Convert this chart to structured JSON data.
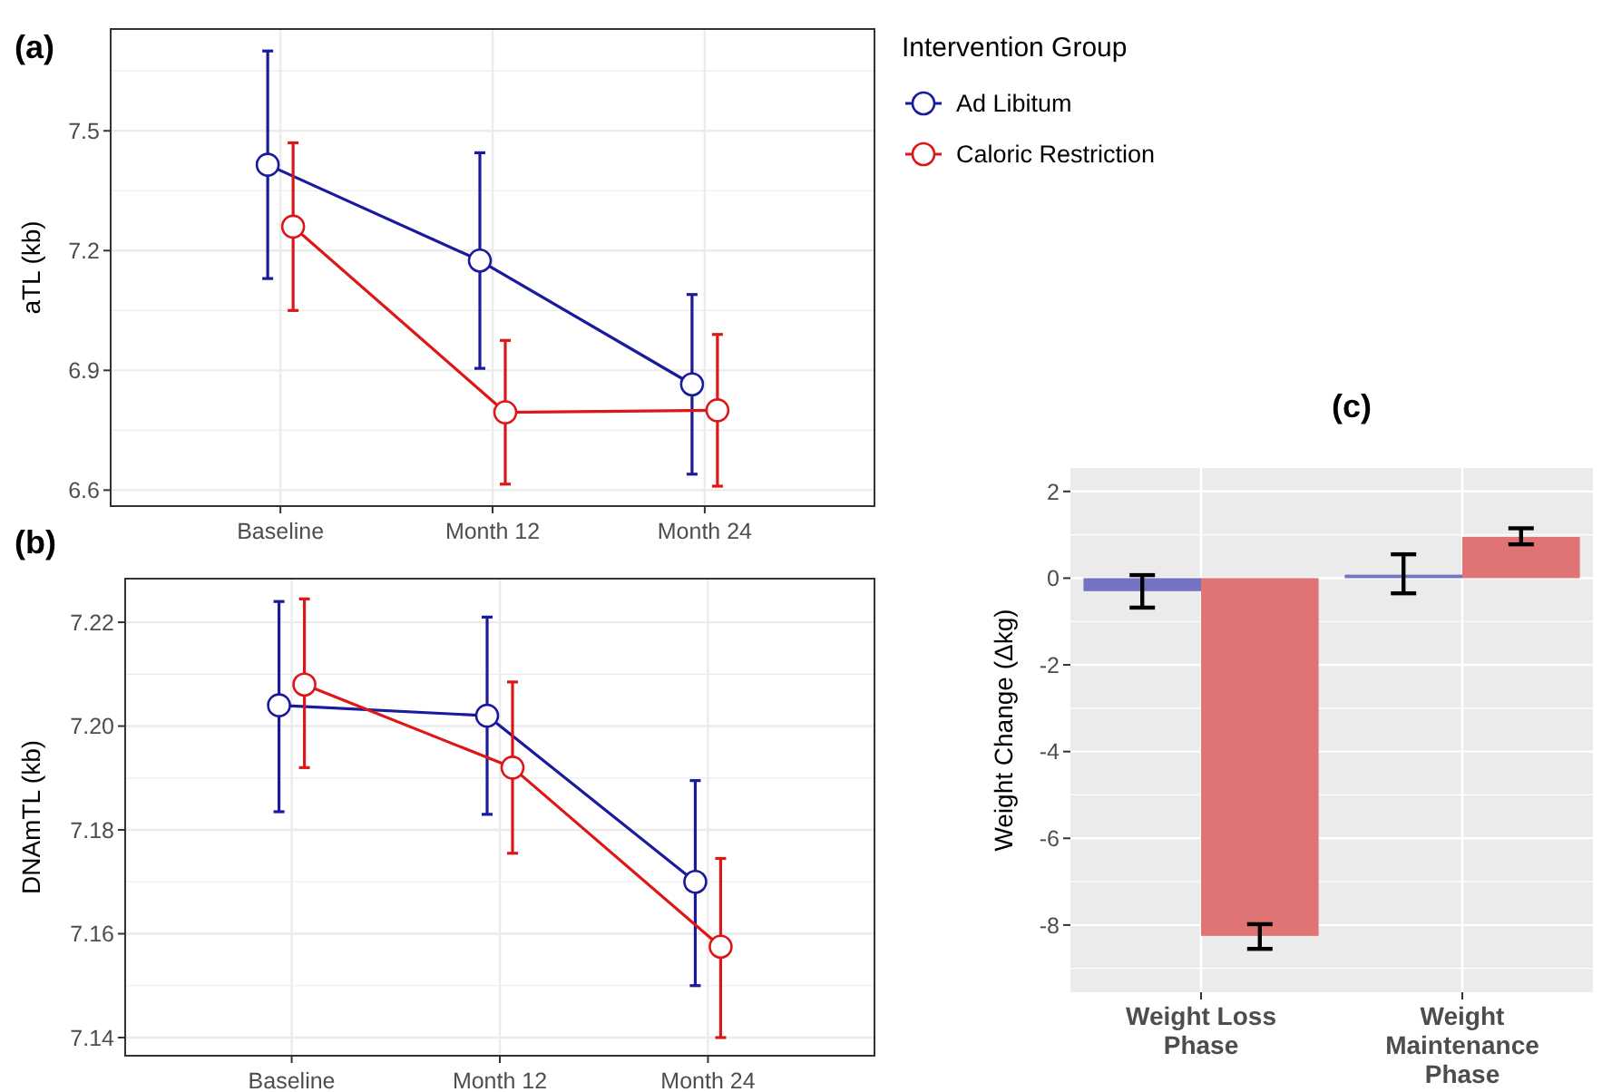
{
  "chart_data": [
    {
      "type": "line",
      "title": "(a)",
      "ylabel": "aTL (kb)",
      "categories": [
        "Baseline",
        "Month 12",
        "Month 24"
      ],
      "ylim": [
        6.56,
        7.755
      ],
      "yticks": [
        6.6,
        6.9,
        7.2,
        7.5
      ],
      "grid": true,
      "marker": "circle",
      "legend": "right",
      "legend_title": "Intervention Group",
      "series": [
        {
          "name": "Ad Libitum",
          "color": "#1a1a9c",
          "values": [
            7.415,
            7.175,
            6.865
          ],
          "errors": [
            [
              7.13,
              7.7
            ],
            [
              6.905,
              7.445
            ],
            [
              6.64,
              7.09
            ]
          ]
        },
        {
          "name": "Caloric Restriction",
          "color": "#dd1717",
          "values": [
            7.26,
            6.795,
            6.8
          ],
          "errors": [
            [
              7.05,
              7.47
            ],
            [
              6.615,
              6.975
            ],
            [
              6.61,
              6.99
            ]
          ]
        }
      ]
    },
    {
      "type": "line",
      "title": "(b)",
      "ylabel": "DNAmTL (kb)",
      "categories": [
        "Baseline",
        "Month 12",
        "Month 24"
      ],
      "ylim": [
        7.1365,
        7.2284
      ],
      "yticks": [
        7.14,
        7.16,
        7.18,
        {
          "value": 7.2,
          "label": "7.20"
        },
        7.22
      ],
      "grid": true,
      "marker": "circle",
      "series": [
        {
          "color": "#1a1a9c",
          "values": [
            7.204,
            7.202,
            7.17
          ],
          "errors": [
            [
              7.1835,
              7.224
            ],
            [
              7.183,
              7.221
            ],
            [
              7.15,
              7.1895
            ]
          ]
        },
        {
          "color": "#dd1717",
          "values": [
            7.208,
            7.192,
            7.1575
          ],
          "errors": [
            [
              7.192,
              7.2245
            ],
            [
              7.1755,
              7.2085
            ],
            [
              7.14,
              7.1745
            ]
          ]
        }
      ]
    },
    {
      "type": "bar",
      "title": "(c)",
      "ylabel": "Weight Change (Δkg)",
      "categories": [
        "Weight Loss Phase",
        "Weight Maintenance Phase"
      ],
      "ylim": [
        -9.55,
        2.54
      ],
      "yticks": [
        -8,
        -6,
        -4,
        -2,
        0,
        2
      ],
      "grid": true,
      "series": [
        {
          "color": "#7474c2",
          "values": [
            -0.3,
            0.08
          ],
          "errors": [
            [
              -0.68,
              0.07
            ],
            [
              -0.35,
              0.55
            ]
          ]
        },
        {
          "color": "#e07373",
          "values": [
            -8.25,
            0.95
          ],
          "errors": [
            [
              -8.55,
              -7.98
            ],
            [
              0.78,
              1.15
            ]
          ]
        }
      ]
    }
  ]
}
